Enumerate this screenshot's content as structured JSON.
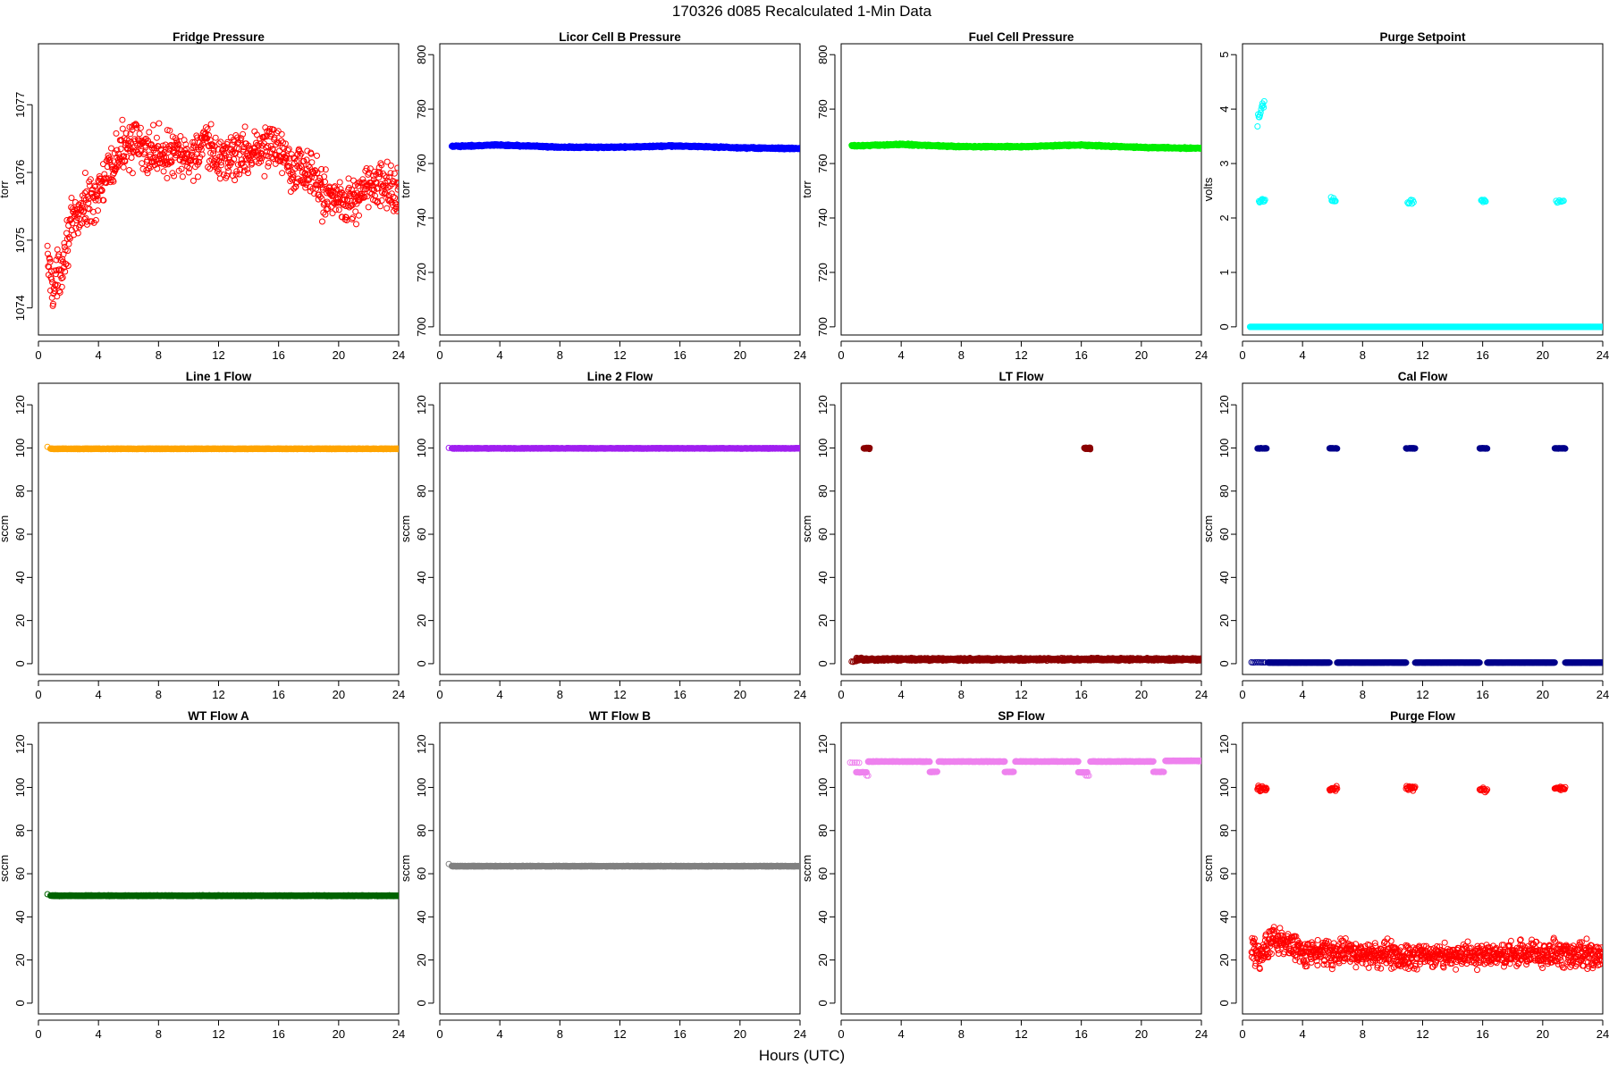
{
  "figure": {
    "main_title": "170326   d085   Recalculated 1-Min Data",
    "x_label": "Hours (UTC)"
  },
  "chart_data": [
    {
      "type": "scatter",
      "title": "Fridge Pressure",
      "ylabel": "torr",
      "color": "#ff0000",
      "xlim": [
        0,
        24
      ],
      "ylim": [
        1073.6,
        1077.9
      ],
      "x_ticks": [
        0,
        4,
        8,
        12,
        16,
        20,
        24
      ],
      "y_ticks": [
        1074,
        1075,
        1076,
        1077
      ],
      "segments": [
        {
          "x": [
            0.6,
            1.0,
            1.5,
            2.0,
            3.0,
            4.0,
            5.0,
            6.0,
            7.0,
            8.0,
            10.0,
            11.0,
            12.0,
            14.0,
            16.0,
            17.0,
            18.0,
            19.0,
            20.0,
            21.0,
            22.0,
            23.0,
            24.0
          ],
          "y": [
            1074.7,
            1074.3,
            1074.6,
            1075.1,
            1075.5,
            1075.7,
            1076.1,
            1076.5,
            1076.3,
            1076.3,
            1076.2,
            1076.4,
            1076.2,
            1076.3,
            1076.4,
            1076.1,
            1076.0,
            1075.7,
            1075.6,
            1075.6,
            1075.8,
            1075.8,
            1075.7
          ],
          "spread": 0.3,
          "count": 920
        }
      ]
    },
    {
      "type": "scatter",
      "title": "Licor Cell B Pressure",
      "ylabel": "torr",
      "color": "#0000ff",
      "xlim": [
        0,
        24
      ],
      "ylim": [
        697,
        804
      ],
      "x_ticks": [
        0,
        4,
        8,
        12,
        16,
        20,
        24
      ],
      "y_ticks": [
        700,
        720,
        740,
        760,
        780,
        800
      ],
      "segments": [
        {
          "x": [
            0.8,
            4.0,
            8.0,
            12.0,
            15.5,
            20.0,
            24.0
          ],
          "y": [
            766.3,
            766.8,
            766.0,
            766.0,
            766.5,
            765.8,
            765.5
          ],
          "spread": 0.25,
          "count": 1400
        }
      ]
    },
    {
      "type": "scatter",
      "title": "Fuel Cell Pressure",
      "ylabel": "torr",
      "color": "#00ee00",
      "xlim": [
        0,
        24
      ],
      "ylim": [
        697,
        804
      ],
      "x_ticks": [
        0,
        4,
        8,
        12,
        16,
        20,
        24
      ],
      "y_ticks": [
        700,
        720,
        740,
        760,
        780,
        800
      ],
      "segments": [
        {
          "x": [
            0.7,
            4.0,
            8.0,
            12.0,
            15.8,
            20.0,
            24.0
          ],
          "y": [
            766.5,
            767.0,
            766.2,
            766.2,
            766.8,
            765.9,
            765.6
          ],
          "spread": 0.25,
          "count": 1400
        }
      ]
    },
    {
      "type": "scatter",
      "title": "Purge Setpoint",
      "ylabel": "volts",
      "color": "#00ffff",
      "xlim": [
        0,
        24
      ],
      "ylim": [
        -0.15,
        5.2
      ],
      "x_ticks": [
        0,
        4,
        8,
        12,
        16,
        20,
        24
      ],
      "y_ticks": [
        0,
        1,
        2,
        3,
        4,
        5
      ],
      "segments": [
        {
          "x": [
            0.5,
            24.0
          ],
          "y": [
            0,
            0
          ],
          "spread": 0,
          "count": 1400
        },
        {
          "x": [
            1.0,
            1.45
          ],
          "y": [
            3.8,
            4.15
          ],
          "spread": 0.12,
          "count": 12
        },
        {
          "x": [
            1.1,
            1.5
          ],
          "y": [
            2.3,
            2.35
          ],
          "spread": 0.05,
          "count": 10
        },
        {
          "x": [
            5.9,
            6.2
          ],
          "y": [
            2.33,
            2.33
          ],
          "spread": 0.04,
          "count": 8
        },
        {
          "x": [
            11.0,
            11.4
          ],
          "y": [
            2.3,
            2.3
          ],
          "spread": 0.04,
          "count": 8
        },
        {
          "x": [
            15.9,
            16.2
          ],
          "y": [
            2.32,
            2.32
          ],
          "spread": 0.03,
          "count": 8
        },
        {
          "x": [
            20.9,
            21.4
          ],
          "y": [
            2.32,
            2.32
          ],
          "spread": 0.05,
          "count": 8
        }
      ]
    },
    {
      "type": "scatter",
      "title": "Line 1 Flow",
      "ylabel": "sccm",
      "color": "#ffa500",
      "xlim": [
        0,
        24
      ],
      "ylim": [
        -5,
        130
      ],
      "x_ticks": [
        0,
        4,
        8,
        12,
        16,
        20,
        24
      ],
      "y_ticks": [
        0,
        20,
        40,
        60,
        80,
        100,
        120
      ],
      "segments": [
        {
          "x": [
            0.6,
            0.6
          ],
          "y": [
            100.5,
            100.5
          ],
          "spread": 0,
          "count": 1
        },
        {
          "x": [
            0.8,
            24.0
          ],
          "y": [
            99.6,
            99.6
          ],
          "spread": 0.12,
          "count": 1400
        }
      ]
    },
    {
      "type": "scatter",
      "title": "Line 2 Flow",
      "ylabel": "sccm",
      "color": "#a020f0",
      "xlim": [
        0,
        24
      ],
      "ylim": [
        -5,
        130
      ],
      "x_ticks": [
        0,
        4,
        8,
        12,
        16,
        20,
        24
      ],
      "y_ticks": [
        0,
        20,
        40,
        60,
        80,
        100,
        120
      ],
      "segments": [
        {
          "x": [
            0.6,
            0.6
          ],
          "y": [
            100.0,
            100.0
          ],
          "spread": 0,
          "count": 1
        },
        {
          "x": [
            0.8,
            24.0
          ],
          "y": [
            99.8,
            99.8
          ],
          "spread": 0.12,
          "count": 1400
        }
      ]
    },
    {
      "type": "scatter",
      "title": "LT Flow",
      "ylabel": "sccm",
      "color": "#8b0000",
      "xlim": [
        0,
        24
      ],
      "ylim": [
        -5,
        130
      ],
      "x_ticks": [
        0,
        4,
        8,
        12,
        16,
        20,
        24
      ],
      "y_ticks": [
        0,
        20,
        40,
        60,
        80,
        100,
        120
      ],
      "segments": [
        {
          "x": [
            0.7,
            1.0
          ],
          "y": [
            1.0,
            1.0
          ],
          "spread": 0.2,
          "count": 4
        },
        {
          "x": [
            1.0,
            24.0
          ],
          "y": [
            2.0,
            2.0
          ],
          "spread": 0.5,
          "count": 1400
        },
        {
          "x": [
            1.5,
            1.9
          ],
          "y": [
            99.8,
            99.8
          ],
          "spread": 0.3,
          "count": 25
        },
        {
          "x": [
            16.2,
            16.6
          ],
          "y": [
            99.8,
            99.8
          ],
          "spread": 0.3,
          "count": 25
        }
      ]
    },
    {
      "type": "scatter",
      "title": "Cal Flow",
      "ylabel": "sccm",
      "color": "#00008b",
      "xlim": [
        0,
        24
      ],
      "ylim": [
        -5,
        130
      ],
      "x_ticks": [
        0,
        4,
        8,
        12,
        16,
        20,
        24
      ],
      "y_ticks": [
        0,
        20,
        40,
        60,
        80,
        100,
        120
      ],
      "segments": [
        {
          "x": [
            0.6,
            1.5
          ],
          "y": [
            0.6,
            0.6
          ],
          "spread": 0.05,
          "count": 8
        },
        {
          "x": [
            1.7,
            5.8
          ],
          "y": [
            0.5,
            0.5
          ],
          "spread": 0.05,
          "count": 250
        },
        {
          "x": [
            6.3,
            10.9
          ],
          "y": [
            0.5,
            0.5
          ],
          "spread": 0.05,
          "count": 280
        },
        {
          "x": [
            11.5,
            15.8
          ],
          "y": [
            0.5,
            0.5
          ],
          "spread": 0.05,
          "count": 260
        },
        {
          "x": [
            16.3,
            20.8
          ],
          "y": [
            0.5,
            0.5
          ],
          "spread": 0.05,
          "count": 270
        },
        {
          "x": [
            21.5,
            24.0
          ],
          "y": [
            0.5,
            0.5
          ],
          "spread": 0.05,
          "count": 150
        },
        {
          "x": [
            1.0,
            1.6
          ],
          "y": [
            99.8,
            99.8
          ],
          "spread": 0.1,
          "count": 30
        },
        {
          "x": [
            5.8,
            6.3
          ],
          "y": [
            99.8,
            99.8
          ],
          "spread": 0.1,
          "count": 25
        },
        {
          "x": [
            10.9,
            11.5
          ],
          "y": [
            99.8,
            99.8
          ],
          "spread": 0.1,
          "count": 30
        },
        {
          "x": [
            15.8,
            16.3
          ],
          "y": [
            99.8,
            99.8
          ],
          "spread": 0.1,
          "count": 25
        },
        {
          "x": [
            20.8,
            21.5
          ],
          "y": [
            99.8,
            99.8
          ],
          "spread": 0.1,
          "count": 35
        }
      ]
    },
    {
      "type": "scatter",
      "title": "WT Flow A",
      "ylabel": "sccm",
      "color": "#006400",
      "xlim": [
        0,
        24
      ],
      "ylim": [
        -5,
        130
      ],
      "x_ticks": [
        0,
        4,
        8,
        12,
        16,
        20,
        24
      ],
      "y_ticks": [
        0,
        20,
        40,
        60,
        80,
        100,
        120
      ],
      "segments": [
        {
          "x": [
            0.6,
            0.6
          ],
          "y": [
            50.5,
            50.5
          ],
          "spread": 0,
          "count": 1
        },
        {
          "x": [
            0.8,
            24.0
          ],
          "y": [
            49.8,
            49.8
          ],
          "spread": 0.15,
          "count": 1400
        }
      ]
    },
    {
      "type": "scatter",
      "title": "WT Flow B",
      "ylabel": "sccm",
      "color": "#808080",
      "xlim": [
        0,
        24
      ],
      "ylim": [
        -5,
        130
      ],
      "x_ticks": [
        0,
        4,
        8,
        12,
        16,
        20,
        24
      ],
      "y_ticks": [
        0,
        20,
        40,
        60,
        80,
        100,
        120
      ],
      "segments": [
        {
          "x": [
            0.6,
            0.6
          ],
          "y": [
            64.5,
            64.5
          ],
          "spread": 0,
          "count": 1
        },
        {
          "x": [
            0.8,
            24.0
          ],
          "y": [
            63.5,
            63.5
          ],
          "spread": 0.12,
          "count": 1400
        }
      ]
    },
    {
      "type": "scatter",
      "title": "SP Flow",
      "ylabel": "sccm",
      "color": "#ee82ee",
      "xlim": [
        0,
        24
      ],
      "ylim": [
        -5,
        130
      ],
      "x_ticks": [
        0,
        4,
        8,
        12,
        16,
        20,
        24
      ],
      "y_ticks": [
        0,
        20,
        40,
        60,
        80,
        100,
        120
      ],
      "segments": [
        {
          "x": [
            0.6,
            1.2
          ],
          "y": [
            111.5,
            111.5
          ],
          "spread": 0.1,
          "count": 5
        },
        {
          "x": [
            1.8,
            5.9
          ],
          "y": [
            112.0,
            112.0
          ],
          "spread": 0.12,
          "count": 250
        },
        {
          "x": [
            6.5,
            10.9
          ],
          "y": [
            112.0,
            112.0
          ],
          "spread": 0.12,
          "count": 270
        },
        {
          "x": [
            11.6,
            15.8
          ],
          "y": [
            112.0,
            112.0
          ],
          "spread": 0.12,
          "count": 250
        },
        {
          "x": [
            16.6,
            20.8
          ],
          "y": [
            112.0,
            112.0
          ],
          "spread": 0.12,
          "count": 250
        },
        {
          "x": [
            21.6,
            24.0
          ],
          "y": [
            112.3,
            112.3
          ],
          "spread": 0.12,
          "count": 140
        },
        {
          "x": [
            1.0,
            1.7
          ],
          "y": [
            107.0,
            107.0
          ],
          "spread": 0.1,
          "count": 20
        },
        {
          "x": [
            1.7,
            1.8
          ],
          "y": [
            105.5,
            105.5
          ],
          "spread": 0.1,
          "count": 2
        },
        {
          "x": [
            5.9,
            6.4
          ],
          "y": [
            107.2,
            107.2
          ],
          "spread": 0.1,
          "count": 18
        },
        {
          "x": [
            10.9,
            11.5
          ],
          "y": [
            107.2,
            107.2
          ],
          "spread": 0.1,
          "count": 18
        },
        {
          "x": [
            15.8,
            16.4
          ],
          "y": [
            107.0,
            107.0
          ],
          "spread": 0.1,
          "count": 15
        },
        {
          "x": [
            16.3,
            16.5
          ],
          "y": [
            105.5,
            105.5
          ],
          "spread": 0.1,
          "count": 3
        },
        {
          "x": [
            20.8,
            21.5
          ],
          "y": [
            107.2,
            107.2
          ],
          "spread": 0.1,
          "count": 20
        }
      ]
    },
    {
      "type": "scatter",
      "title": "Purge Flow",
      "ylabel": "sccm",
      "color": "#ff0000",
      "xlim": [
        0,
        24
      ],
      "ylim": [
        -5,
        130
      ],
      "x_ticks": [
        0,
        4,
        8,
        12,
        16,
        20,
        24
      ],
      "y_ticks": [
        0,
        20,
        40,
        60,
        80,
        100,
        120
      ],
      "segments": [
        {
          "x": [
            0.6,
            1.2,
            2.0,
            4.0,
            8.0,
            12.0,
            16.0,
            20.0,
            24.0
          ],
          "y": [
            25,
            22,
            30,
            24,
            23,
            22,
            22,
            23,
            22
          ],
          "spread": 5,
          "count": 1050
        },
        {
          "x": [
            1.0,
            1.6
          ],
          "y": [
            99.5,
            99.5
          ],
          "spread": 1.0,
          "count": 22
        },
        {
          "x": [
            5.8,
            6.3
          ],
          "y": [
            99.5,
            99.5
          ],
          "spread": 1.0,
          "count": 15
        },
        {
          "x": [
            10.9,
            11.5
          ],
          "y": [
            99.8,
            99.8
          ],
          "spread": 1.0,
          "count": 18
        },
        {
          "x": [
            15.8,
            16.3
          ],
          "y": [
            99.0,
            99.0
          ],
          "spread": 1.0,
          "count": 12
        },
        {
          "x": [
            20.8,
            21.5
          ],
          "y": [
            99.5,
            99.5
          ],
          "spread": 1.0,
          "count": 18
        }
      ]
    }
  ]
}
